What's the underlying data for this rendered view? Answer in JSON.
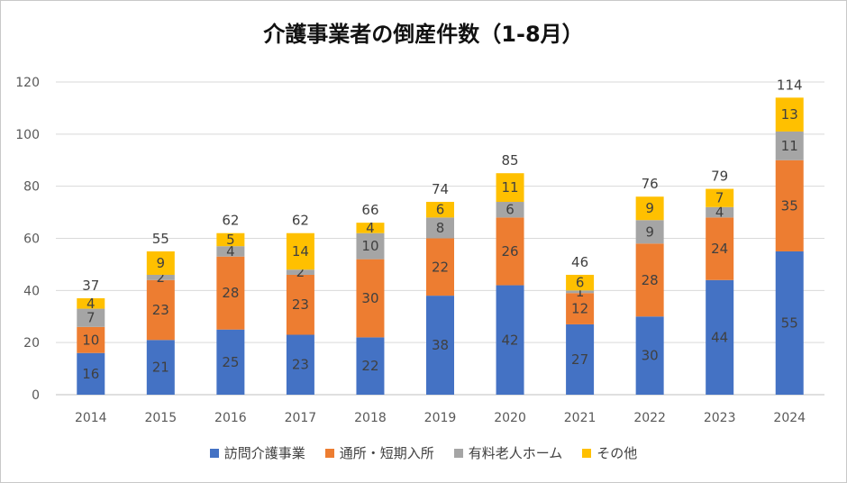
{
  "chart_data": {
    "type": "bar",
    "stacked": true,
    "title": "介護事業者の倒産件数（1-8月）",
    "xlabel": "",
    "ylabel": "",
    "categories": [
      "2014",
      "2015",
      "2016",
      "2017",
      "2018",
      "2019",
      "2020",
      "2021",
      "2022",
      "2023",
      "2024"
    ],
    "ylim": [
      0,
      120
    ],
    "yticks": [
      "0",
      "20",
      "40",
      "60",
      "80",
      "100",
      "120"
    ],
    "grid": true,
    "legend_position": "bottom",
    "series": [
      {
        "name": "訪問介護事業",
        "color": "#4472C4",
        "label_color": "#404040",
        "values": [
          16,
          21,
          25,
          23,
          22,
          38,
          42,
          27,
          30,
          44,
          55
        ]
      },
      {
        "name": "通所・短期入所",
        "color": "#ED7D31",
        "label_color": "#404040",
        "values": [
          10,
          23,
          28,
          23,
          30,
          22,
          26,
          12,
          28,
          24,
          35
        ]
      },
      {
        "name": "有料老人ホーム",
        "color": "#A5A5A5",
        "label_color": "#404040",
        "values": [
          7,
          2,
          4,
          2,
          10,
          8,
          6,
          1,
          9,
          4,
          11
        ]
      },
      {
        "name": "その他",
        "color": "#FFC000",
        "label_color": "#404040",
        "values": [
          4,
          9,
          5,
          14,
          4,
          6,
          11,
          6,
          9,
          7,
          13
        ]
      }
    ],
    "totals": [
      37,
      55,
      62,
      62,
      66,
      74,
      85,
      46,
      76,
      79,
      114
    ]
  }
}
